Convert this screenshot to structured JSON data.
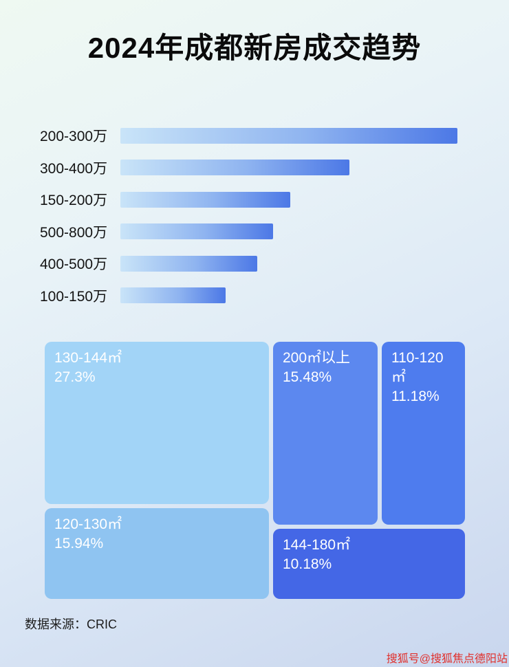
{
  "page": {
    "title": "2024年成都新房成交趋势",
    "source_label": "数据来源：CRIC",
    "watermark": "搜狐号@搜狐焦点德阳站"
  },
  "colors": {
    "bar_gradient_start": "#c9e4f8",
    "bar_gradient_end": "#4c78e6",
    "background_top": "#eff9f2",
    "background_bottom": "#c9d6ee",
    "title_text": "#0b0b0b",
    "watermark_red": "#e0312d"
  },
  "chart_data": [
    {
      "type": "bar",
      "orientation": "horizontal",
      "title": "2024年成都新房成交趋势",
      "categories": [
        "200-300万",
        "300-400万",
        "150-200万",
        "500-800万",
        "400-500万",
        "100-150万"
      ],
      "values_relative_pct": [
        100,
        68,
        50.5,
        45.4,
        40.6,
        31.3
      ],
      "value_labels_shown": false,
      "xlabel": "",
      "ylabel": "",
      "grid": false,
      "legend": "none",
      "note": "bar lengths estimated relative to longest bar; no numeric axis shown in source"
    },
    {
      "type": "treemap",
      "title": "",
      "items": [
        {
          "label": "130-144㎡",
          "pct": "27.3%",
          "value": 27.3,
          "color": "#a2d4f7"
        },
        {
          "label": "200㎡以上",
          "pct": "15.48%",
          "value": 15.48,
          "color": "#5c88ef"
        },
        {
          "label": "110-120㎡",
          "pct": "11.18%",
          "value": 11.18,
          "color": "#4e7cee"
        },
        {
          "label": "120-130㎡",
          "pct": "15.94%",
          "value": 15.94,
          "color": "#8fc4f1"
        },
        {
          "label": "144-180㎡",
          "pct": "10.18%",
          "value": 10.18,
          "color": "#4467e6"
        }
      ]
    }
  ]
}
